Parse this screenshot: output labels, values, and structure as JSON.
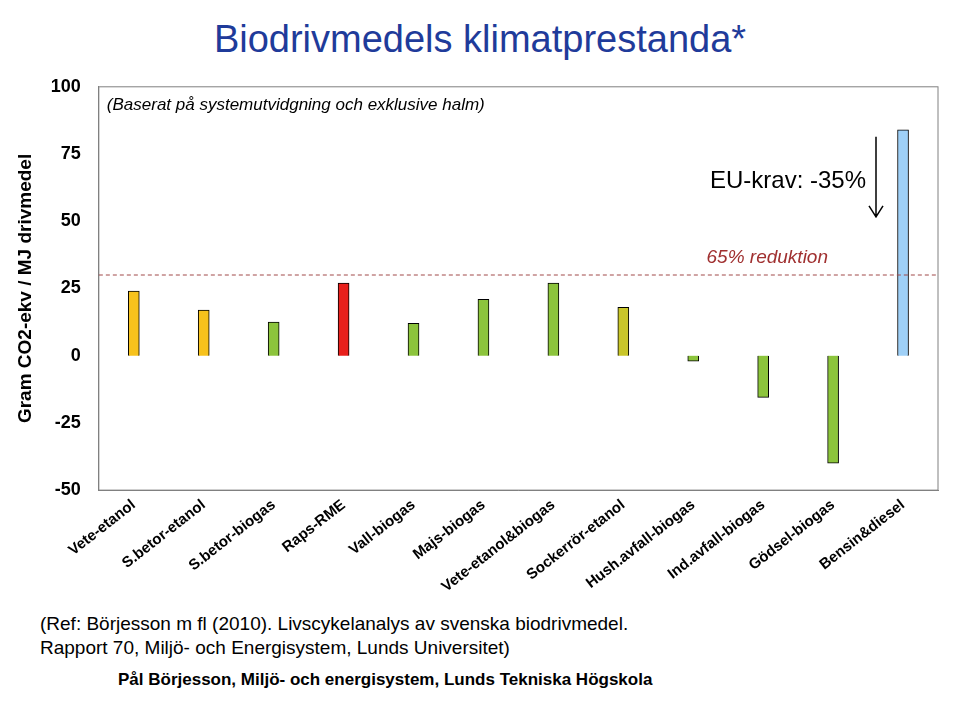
{
  "chart_data": {
    "type": "bar",
    "title": "Biodrivmedels klimatprestanda*",
    "subtitle": "(Baserat på systemutvidgning och exklusive halm)",
    "y_label": "Gram CO2-ekv / MJ drivmedel",
    "categories": [
      "Vete-etanol",
      "S.betor-etanol",
      "S.betor-biogas",
      "Raps-RME",
      "Vall-biogas",
      "Majs-biogas",
      "Vete-etanol&biogas",
      "Sockerrör-etanol",
      "Hush.avfall-biogas",
      "Ind.avfall-biogas",
      "Gödsel-biogas",
      "Bensin&diesel"
    ],
    "values": [
      24,
      17,
      12.5,
      27,
      12,
      21,
      27,
      18,
      -2,
      -15.5,
      -40,
      84
    ],
    "colors": [
      "#f7c21c",
      "#f7c21c",
      "#8cc43c",
      "#e8201c",
      "#8cc43c",
      "#8cc43c",
      "#8cc43c",
      "#c9c62a",
      "#8cc43c",
      "#8cc43c",
      "#8cc43c",
      "#9fd0f7"
    ],
    "ylim": [
      -50,
      100
    ],
    "yticks": [
      -50,
      -25,
      0,
      25,
      50,
      75,
      100
    ],
    "grid": false,
    "annotations": [
      {
        "text": "EU-krav: -35%"
      }
    ],
    "threshold": {
      "value": 30,
      "label": "65% reduktion"
    }
  },
  "footer": {
    "reference": [
      "(Ref: Börjesson m fl (2010). Livscykelanalys av svenska biodrivmedel.",
      "Rapport 70, Miljö- och Energisystem, Lunds Universitet)"
    ],
    "author": "Pål Börjesson, Miljö- och energisystem, Lunds Tekniska Högskola"
  }
}
